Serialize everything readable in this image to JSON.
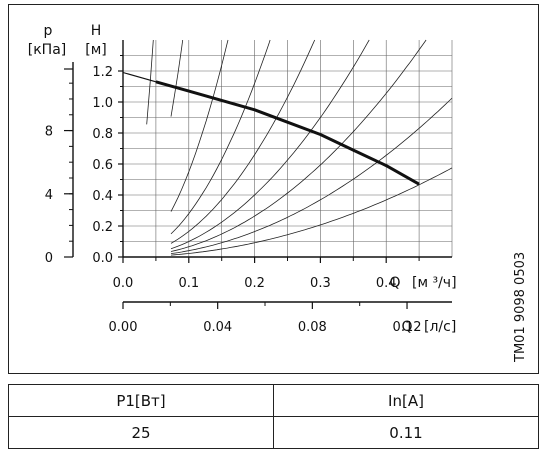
{
  "chart_data": {
    "type": "line",
    "axes": {
      "p": {
        "label": "p",
        "unit": "[кПа]",
        "ticks": [
          "0",
          "4",
          "8"
        ],
        "range": [
          0,
          11.77
        ]
      },
      "h": {
        "label": "H",
        "unit": "[м]",
        "ticks": [
          "0.0",
          "0.2",
          "0.4",
          "0.6",
          "0.8",
          "1.0",
          "1.2"
        ],
        "range": [
          0,
          1.2
        ]
      },
      "q_m3h": {
        "label": "Q",
        "unit": "[м ³/ч]",
        "ticks": [
          "0.0",
          "0.1",
          "0.2",
          "0.3",
          "0.4"
        ],
        "range": [
          0,
          0.5
        ]
      },
      "q_ls": {
        "label": "Q",
        "unit": "[л/с]",
        "ticks": [
          "0.00",
          "0.04",
          "0.08",
          "0.12"
        ],
        "range": [
          0,
          0.139
        ]
      }
    },
    "series": [
      {
        "role": "pump-curve",
        "x": [
          0.0,
          0.05,
          0.1,
          0.15,
          0.2,
          0.25,
          0.3,
          0.35,
          0.4,
          0.45
        ],
        "y": [
          1.19,
          1.13,
          1.07,
          1.01,
          0.95,
          0.87,
          0.79,
          0.69,
          0.59,
          0.47
        ]
      }
    ],
    "system_curves_k": [
      660,
      170,
      55,
      28,
      16.5,
      10,
      6.6,
      4.1,
      2.3
    ],
    "system_curves_x0": [
      0.036,
      0.073,
      0.073,
      0.073,
      0.073,
      0.073,
      0.073,
      0.073,
      0.073
    ]
  },
  "side_label": "TM01 9098 0503",
  "table": {
    "headers": [
      "P1[Вт]",
      "In[A]"
    ],
    "values": [
      "25",
      "0.11"
    ]
  }
}
